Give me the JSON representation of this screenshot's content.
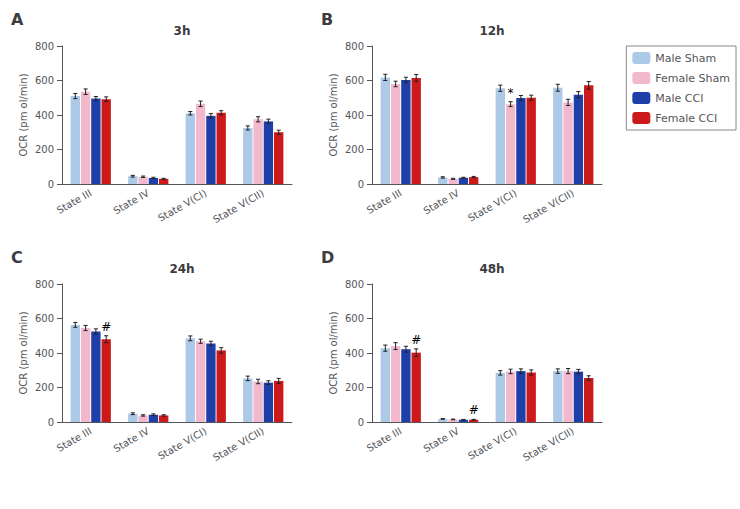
{
  "chart_data": [
    {
      "type": "bar",
      "panel_label": "A",
      "title": "3h",
      "categories": [
        "State III",
        "State IV",
        "State V(CI)",
        "State V(CII)"
      ],
      "y_label": "OCR (pm ol/min)",
      "ylim": [
        0,
        800
      ],
      "yticks": [
        0,
        200,
        400,
        600,
        800
      ],
      "grid": false,
      "legend": "right",
      "series": [
        {
          "name": "Male Sham",
          "color": "#adc9e8",
          "values": [
            510,
            45,
            410,
            325
          ],
          "errors": [
            15,
            5,
            10,
            12
          ]
        },
        {
          "name": "Female Sham",
          "color": "#f2b8cc",
          "values": [
            535,
            42,
            465,
            375
          ],
          "errors": [
            16,
            4,
            16,
            15
          ]
        },
        {
          "name": "Male CCI",
          "color": "#1f3fa8",
          "values": [
            495,
            35,
            395,
            363
          ],
          "errors": [
            12,
            4,
            13,
            13
          ]
        },
        {
          "name": "Female CCI",
          "color": "#cc1a1a",
          "values": [
            492,
            30,
            413,
            300
          ],
          "errors": [
            13,
            3,
            12,
            12
          ]
        }
      ],
      "annotations": []
    },
    {
      "type": "bar",
      "panel_label": "B",
      "title": "12h",
      "categories": [
        "State III",
        "State IV",
        "State V(CI)",
        "State V(CII)"
      ],
      "y_label": "OCR (pm ol/min)",
      "ylim": [
        0,
        800
      ],
      "yticks": [
        0,
        200,
        400,
        600,
        800
      ],
      "grid": false,
      "legend": "right",
      "series": [
        {
          "name": "Male Sham",
          "color": "#adc9e8",
          "values": [
            618,
            38,
            555,
            558
          ],
          "errors": [
            18,
            4,
            18,
            20
          ]
        },
        {
          "name": "Female Sham",
          "color": "#f2b8cc",
          "values": [
            580,
            30,
            463,
            473
          ],
          "errors": [
            16,
            3,
            14,
            18
          ]
        },
        {
          "name": "Male CCI",
          "color": "#1f3fa8",
          "values": [
            603,
            36,
            498,
            518
          ],
          "errors": [
            16,
            3,
            15,
            18
          ]
        },
        {
          "name": "Female CCI",
          "color": "#cc1a1a",
          "values": [
            615,
            40,
            500,
            572
          ],
          "errors": [
            20,
            4,
            15,
            22
          ]
        }
      ],
      "annotations": [
        {
          "category": "State V(CI)",
          "series": "Female Sham",
          "text": "*"
        }
      ]
    },
    {
      "type": "bar",
      "panel_label": "C",
      "title": "24h",
      "categories": [
        "State III",
        "State IV",
        "State V(CI)",
        "State V(CII)"
      ],
      "y_label": "OCR (pm ol/min)",
      "ylim": [
        0,
        800
      ],
      "yticks": [
        0,
        200,
        400,
        600,
        800
      ],
      "grid": false,
      "legend": "right",
      "series": [
        {
          "name": "Male Sham",
          "color": "#adc9e8",
          "values": [
            563,
            48,
            485,
            253
          ],
          "errors": [
            14,
            5,
            14,
            13
          ]
        },
        {
          "name": "Female Sham",
          "color": "#f2b8cc",
          "values": [
            545,
            38,
            468,
            235
          ],
          "errors": [
            15,
            4,
            12,
            13
          ]
        },
        {
          "name": "Male CCI",
          "color": "#1f3fa8",
          "values": [
            525,
            42,
            455,
            228
          ],
          "errors": [
            15,
            5,
            13,
            11
          ]
        },
        {
          "name": "Female CCI",
          "color": "#cc1a1a",
          "values": [
            480,
            38,
            415,
            238
          ],
          "errors": [
            20,
            4,
            16,
            15
          ]
        }
      ],
      "annotations": [
        {
          "category": "State III",
          "series": "Female CCI",
          "text": "#"
        }
      ]
    },
    {
      "type": "bar",
      "panel_label": "D",
      "title": "48h",
      "categories": [
        "State III",
        "State IV",
        "State V(CI)",
        "State V(CII)"
      ],
      "y_label": "OCR (pm ol/min)",
      "ylim": [
        0,
        800
      ],
      "yticks": [
        0,
        200,
        400,
        600,
        800
      ],
      "grid": false,
      "legend": "right",
      "series": [
        {
          "name": "Male Sham",
          "color": "#adc9e8",
          "values": [
            428,
            18,
            285,
            295
          ],
          "errors": [
            18,
            2,
            13,
            13
          ]
        },
        {
          "name": "Female Sham",
          "color": "#f2b8cc",
          "values": [
            440,
            15,
            293,
            295
          ],
          "errors": [
            20,
            2,
            13,
            15
          ]
        },
        {
          "name": "Male CCI",
          "color": "#1f3fa8",
          "values": [
            422,
            13,
            295,
            292
          ],
          "errors": [
            17,
            2,
            13,
            13
          ]
        },
        {
          "name": "Female CCI",
          "color": "#cc1a1a",
          "values": [
            402,
            13,
            287,
            255
          ],
          "errors": [
            22,
            2,
            15,
            13
          ]
        }
      ],
      "annotations": [
        {
          "category": "State III",
          "series": "Female CCI",
          "text": "#"
        },
        {
          "category": "State IV",
          "series": "Female CCI",
          "text": "#"
        }
      ]
    }
  ]
}
